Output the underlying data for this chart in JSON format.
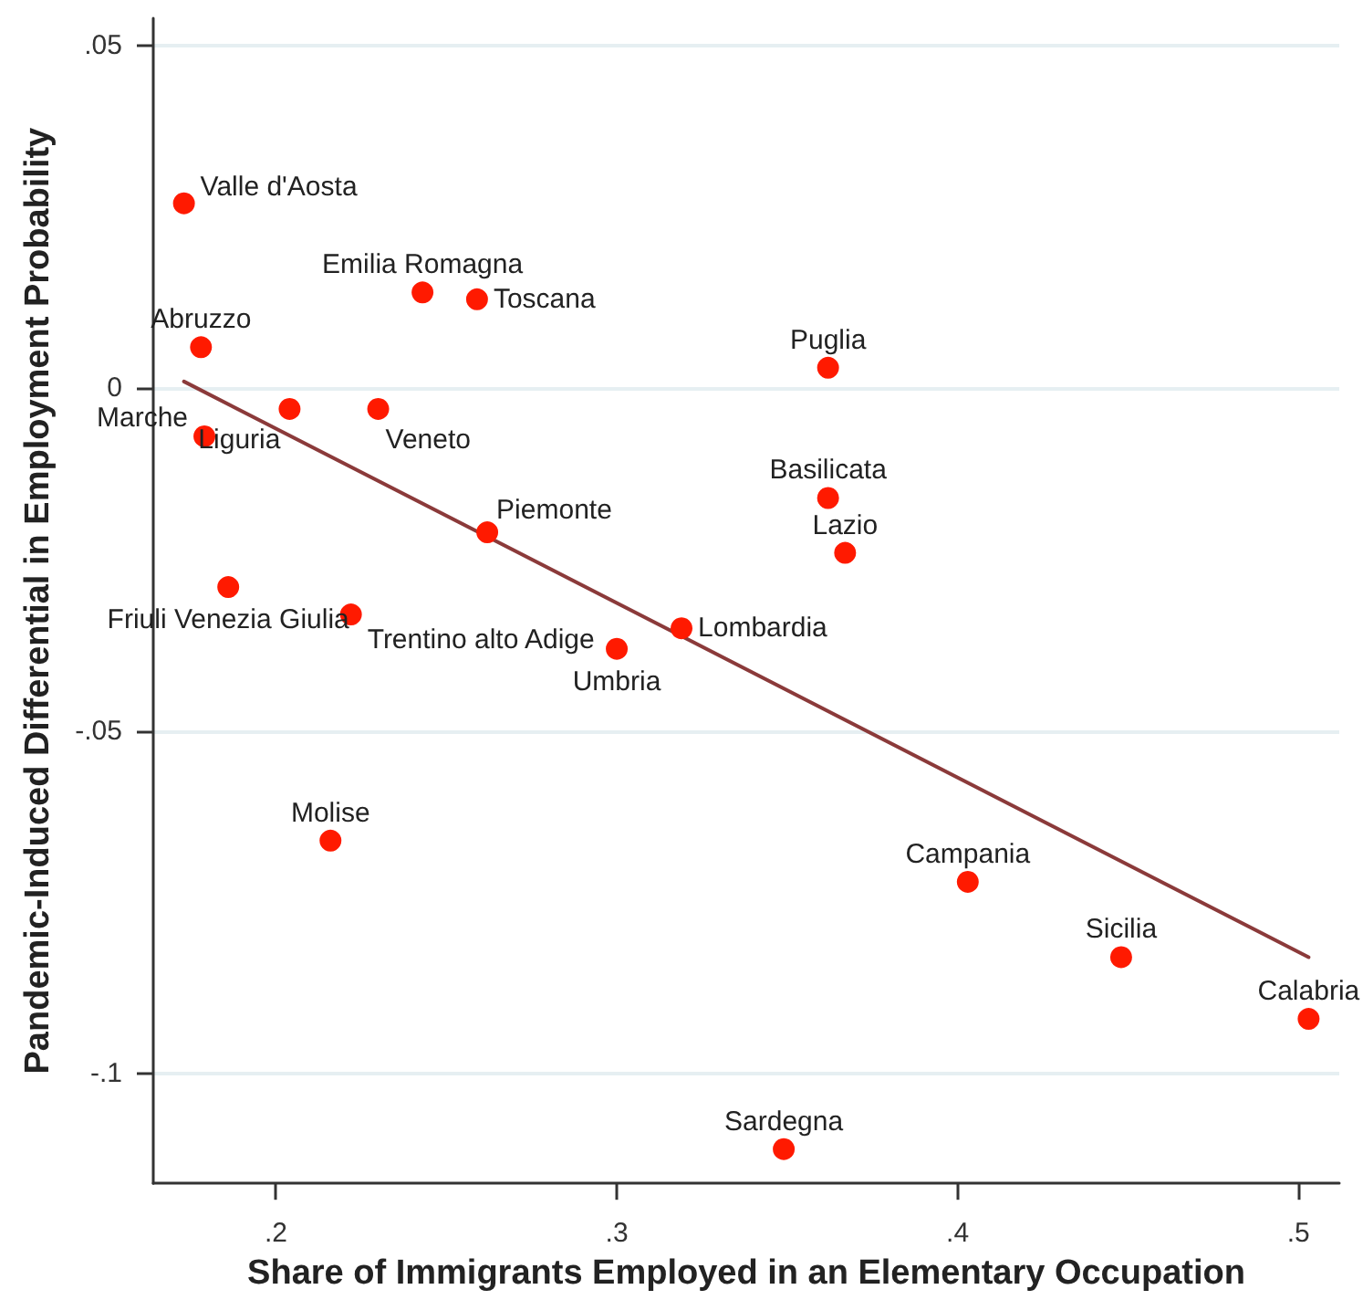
{
  "chart_data": {
    "type": "scatter",
    "xlabel": "Share of Immigrants Employed in an Elementary Occupation",
    "ylabel": "Pandemic-Induced Differential in Employment Probability",
    "series": [
      {
        "color": "#ff1a00",
        "marker": "circle",
        "x": [
          0.173,
          0.243,
          0.259,
          0.178,
          0.204,
          0.23,
          0.179,
          0.262,
          0.186,
          0.222,
          0.3,
          0.319,
          0.362,
          0.362,
          0.367,
          0.216,
          0.403,
          0.448,
          0.503,
          0.349
        ],
        "values": [
          0.027,
          0.014,
          0.013,
          0.006,
          -0.003,
          -0.003,
          -0.007,
          -0.021,
          -0.029,
          -0.033,
          -0.038,
          -0.035,
          0.003,
          -0.016,
          -0.024,
          -0.066,
          -0.072,
          -0.083,
          -0.092,
          -0.111
        ]
      },
      {
        "type": "line",
        "color": "#8b3a3a",
        "x": [
          0.173,
          0.503
        ],
        "values": [
          0.001,
          -0.083
        ]
      }
    ],
    "annotations": [
      {
        "text": "Valle d'Aosta",
        "x": 0.173,
        "y": 0.027
      },
      {
        "text": "Emilia Romagna",
        "x": 0.243,
        "y": 0.014
      },
      {
        "text": "Toscana",
        "x": 0.259,
        "y": 0.013
      },
      {
        "text": "Abruzzo",
        "x": 0.178,
        "y": 0.006
      },
      {
        "text": "Liguria",
        "x": 0.204,
        "y": -0.003
      },
      {
        "text": "Veneto",
        "x": 0.23,
        "y": -0.003
      },
      {
        "text": "Marche",
        "x": 0.179,
        "y": -0.007
      },
      {
        "text": "Piemonte",
        "x": 0.262,
        "y": -0.021
      },
      {
        "text": "Friuli Venezia Giulia",
        "x": 0.186,
        "y": -0.029
      },
      {
        "text": "Trentino alto Adige",
        "x": 0.222,
        "y": -0.033
      },
      {
        "text": "Umbria",
        "x": 0.3,
        "y": -0.038
      },
      {
        "text": "Lombardia",
        "x": 0.319,
        "y": -0.035
      },
      {
        "text": "Puglia",
        "x": 0.362,
        "y": 0.003
      },
      {
        "text": "Basilicata",
        "x": 0.362,
        "y": -0.016
      },
      {
        "text": "Lazio",
        "x": 0.367,
        "y": -0.024
      },
      {
        "text": "Molise",
        "x": 0.216,
        "y": -0.066
      },
      {
        "text": "Campania",
        "x": 0.403,
        "y": -0.072
      },
      {
        "text": "Sicilia",
        "x": 0.448,
        "y": -0.083
      },
      {
        "text": "Calabria",
        "x": 0.503,
        "y": -0.092
      },
      {
        "text": "Sardegna",
        "x": 0.349,
        "y": -0.111
      }
    ],
    "xlim": [
      0.164,
      0.512
    ],
    "xticks": [
      {
        "value": 0.2,
        "label": ".2"
      },
      {
        "value": 0.3,
        "label": ".3"
      },
      {
        "value": 0.4,
        "label": ".4"
      },
      {
        "value": 0.5,
        "label": ".5"
      }
    ],
    "ylim": [
      -0.116,
      0.054
    ],
    "yticks": [
      {
        "value": -0.1,
        "label": "-.1"
      },
      {
        "value": -0.05,
        "label": "-.05"
      },
      0,
      {
        "value": 0.05,
        "label": ".05"
      }
    ],
    "grid": "y",
    "line_style": "solid"
  }
}
